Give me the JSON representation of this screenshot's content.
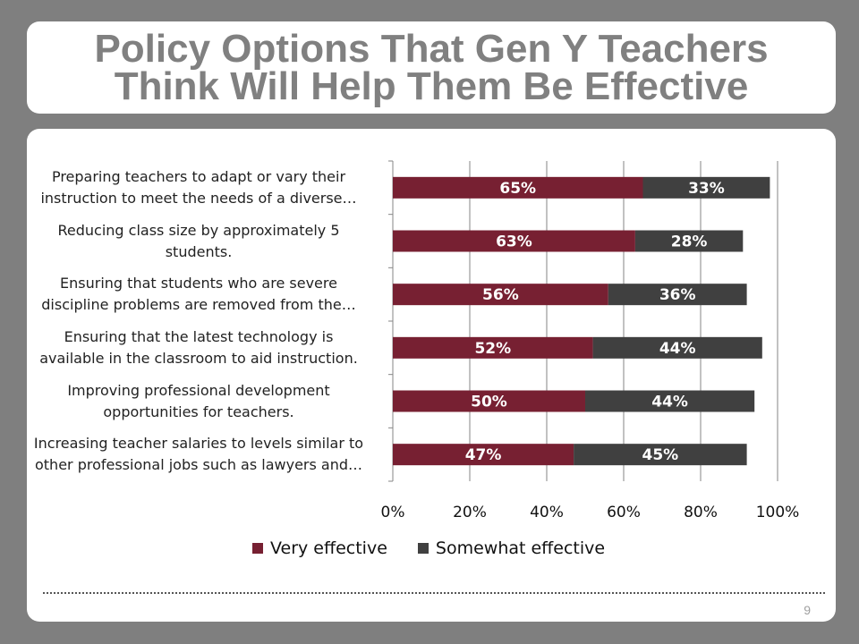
{
  "slide": {
    "title_line1": "Policy Options That Gen Y Teachers",
    "title_line2": "Think Will Help Them Be Effective",
    "page_number": "9"
  },
  "chart_data": {
    "type": "bar",
    "orientation": "horizontal",
    "stacked": true,
    "categories": [
      [
        "Preparing teachers to adapt or vary their",
        "instruction to meet the needs of a diverse…"
      ],
      [
        "Reducing class size by approximately 5",
        "students."
      ],
      [
        "Ensuring that students who are severe",
        "discipline problems are removed from the…"
      ],
      [
        "Ensuring that the latest technology is",
        "available in the classroom to aid instruction."
      ],
      [
        "Improving professional development",
        "opportunities for teachers."
      ],
      [
        "Increasing teacher salaries to levels similar to",
        "other professional jobs such as lawyers and…"
      ]
    ],
    "series": [
      {
        "name": "Very effective",
        "color": "#772032",
        "values": [
          65,
          63,
          56,
          52,
          50,
          47
        ],
        "labels": [
          "65%",
          "63%",
          "56%",
          "52%",
          "50%",
          "47%"
        ]
      },
      {
        "name": "Somewhat effective",
        "color": "#404040",
        "values": [
          33,
          28,
          36,
          44,
          44,
          45
        ],
        "labels": [
          "33%",
          "28%",
          "36%",
          "44%",
          "44%",
          "45%"
        ]
      }
    ],
    "xlim": [
      0,
      100
    ],
    "xticks": [
      "0%",
      "20%",
      "40%",
      "60%",
      "80%",
      "100%"
    ],
    "grid": true,
    "legend_position": "bottom"
  }
}
